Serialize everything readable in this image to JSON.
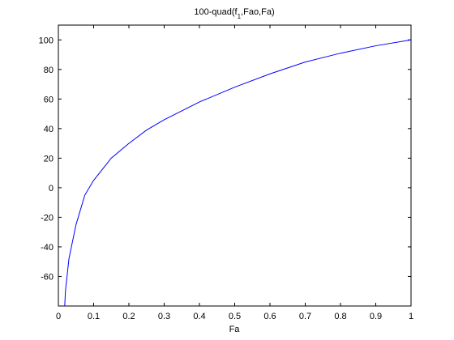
{
  "chart_data": {
    "type": "line",
    "title": [
      "100-quad(f",
      "1",
      ",Fao,Fa)"
    ],
    "xlabel": "Fa",
    "x": [
      0.018,
      0.02,
      0.03,
      0.05,
      0.075,
      0.1,
      0.15,
      0.2,
      0.25,
      0.3,
      0.4,
      0.5,
      0.6,
      0.7,
      0.8,
      0.9,
      1.0
    ],
    "series": [
      {
        "color": "#0000ff",
        "values": [
          -80,
          -70,
          -48,
          -25,
          -5,
          5,
          20,
          30,
          39,
          46,
          58,
          68,
          77,
          85,
          91,
          96,
          100
        ]
      }
    ],
    "xlim": [
      0,
      1
    ],
    "xticks": [
      0,
      0.1,
      0.2,
      0.3,
      0.4,
      0.5,
      0.6,
      0.7,
      0.8,
      0.9,
      1
    ],
    "ylim": [
      -80,
      110
    ],
    "yticks": [
      -60,
      -40,
      -20,
      0,
      20,
      40,
      60,
      80,
      100
    ],
    "grid": false
  }
}
